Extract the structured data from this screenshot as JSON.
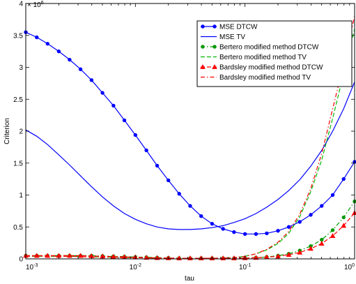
{
  "chart_data": {
    "type": "line",
    "xlabel": "tau",
    "ylabel": "Criterion",
    "xscale": "log",
    "xlim": [
      0.001,
      1
    ],
    "ylim": [
      0,
      4
    ],
    "y_exponent_label": "× 10",
    "y_exponent_power": "6",
    "x_ticks": [
      {
        "value": 0.001,
        "base": "10",
        "exp": "-3"
      },
      {
        "value": 0.01,
        "base": "10",
        "exp": "-2"
      },
      {
        "value": 0.1,
        "base": "10",
        "exp": "-1"
      },
      {
        "value": 1,
        "base": "10",
        "exp": "0"
      }
    ],
    "y_ticks": [
      0,
      0.5,
      1,
      1.5,
      2,
      2.5,
      3,
      3.5,
      4
    ],
    "y_tick_labels": [
      "0",
      "0.5",
      "1",
      "1.5",
      "2",
      "2.5",
      "3",
      "3.5",
      "4"
    ],
    "grid": false,
    "legend_position": "top-right",
    "x": [
      0.001,
      0.00126,
      0.00158,
      0.002,
      0.00251,
      0.00316,
      0.00398,
      0.00501,
      0.00631,
      0.00794,
      0.01,
      0.0126,
      0.0158,
      0.02,
      0.0251,
      0.0316,
      0.0398,
      0.0501,
      0.0631,
      0.0794,
      0.1,
      0.126,
      0.158,
      0.2,
      0.251,
      0.316,
      0.398,
      0.501,
      0.631,
      0.794,
      1.0
    ],
    "series": [
      {
        "name": "MSE DTCW",
        "color": "#0000ff",
        "style": "solid",
        "marker": "dot",
        "values": [
          3.55,
          3.47,
          3.37,
          3.25,
          3.12,
          2.97,
          2.8,
          2.6,
          2.4,
          2.17,
          1.94,
          1.7,
          1.46,
          1.23,
          1.02,
          0.83,
          0.67,
          0.55,
          0.47,
          0.42,
          0.39,
          0.39,
          0.4,
          0.44,
          0.5,
          0.58,
          0.69,
          0.83,
          1.0,
          1.25,
          1.52
        ]
      },
      {
        "name": "MSE TV",
        "color": "#0000ff",
        "style": "solid",
        "marker": "none",
        "values": [
          2.02,
          1.92,
          1.79,
          1.63,
          1.47,
          1.3,
          1.13,
          0.97,
          0.83,
          0.71,
          0.62,
          0.55,
          0.5,
          0.47,
          0.46,
          0.46,
          0.47,
          0.49,
          0.52,
          0.57,
          0.63,
          0.71,
          0.81,
          0.93,
          1.07,
          1.24,
          1.45,
          1.7,
          2.0,
          2.35,
          2.77
        ]
      },
      {
        "name": "Bertero modified method DTCW",
        "color": "#009900",
        "style": "dash-dot",
        "marker": "dot",
        "values": [
          0.05,
          0.05,
          0.05,
          0.05,
          0.05,
          0.05,
          0.05,
          0.045,
          0.04,
          0.035,
          0.03,
          0.025,
          0.02,
          0.015,
          0.012,
          0.01,
          0.01,
          0.01,
          0.01,
          0.01,
          0.012,
          0.02,
          0.03,
          0.05,
          0.08,
          0.13,
          0.2,
          0.3,
          0.45,
          0.65,
          0.9
        ]
      },
      {
        "name": "Bertero modified method TV",
        "color": "#00bb00",
        "style": "dashed",
        "marker": "none",
        "values": [
          0.04,
          0.04,
          0.04,
          0.04,
          0.04,
          0.035,
          0.03,
          0.03,
          0.025,
          0.02,
          0.02,
          0.015,
          0.012,
          0.01,
          0.01,
          0.01,
          0.01,
          0.01,
          0.012,
          0.02,
          0.04,
          0.08,
          0.14,
          0.24,
          0.4,
          0.66,
          1.05,
          1.55,
          2.2,
          2.9,
          3.6
        ]
      },
      {
        "name": "Bardsley modified method DTCW",
        "color": "#ff0000",
        "style": "dashed",
        "marker": "triangle",
        "values": [
          0.05,
          0.05,
          0.05,
          0.05,
          0.05,
          0.05,
          0.045,
          0.04,
          0.035,
          0.03,
          0.025,
          0.02,
          0.015,
          0.012,
          0.01,
          0.01,
          0.01,
          0.01,
          0.01,
          0.01,
          0.012,
          0.018,
          0.027,
          0.04,
          0.065,
          0.1,
          0.16,
          0.24,
          0.36,
          0.52,
          0.72
        ]
      },
      {
        "name": "Bardsley modified method TV",
        "color": "#ff0000",
        "style": "dash-dot",
        "marker": "none",
        "values": [
          0.04,
          0.04,
          0.04,
          0.04,
          0.04,
          0.035,
          0.03,
          0.03,
          0.025,
          0.02,
          0.02,
          0.015,
          0.012,
          0.01,
          0.01,
          0.01,
          0.01,
          0.01,
          0.012,
          0.02,
          0.04,
          0.08,
          0.15,
          0.26,
          0.43,
          0.7,
          1.1,
          1.65,
          2.35,
          3.05,
          3.8
        ]
      }
    ]
  }
}
